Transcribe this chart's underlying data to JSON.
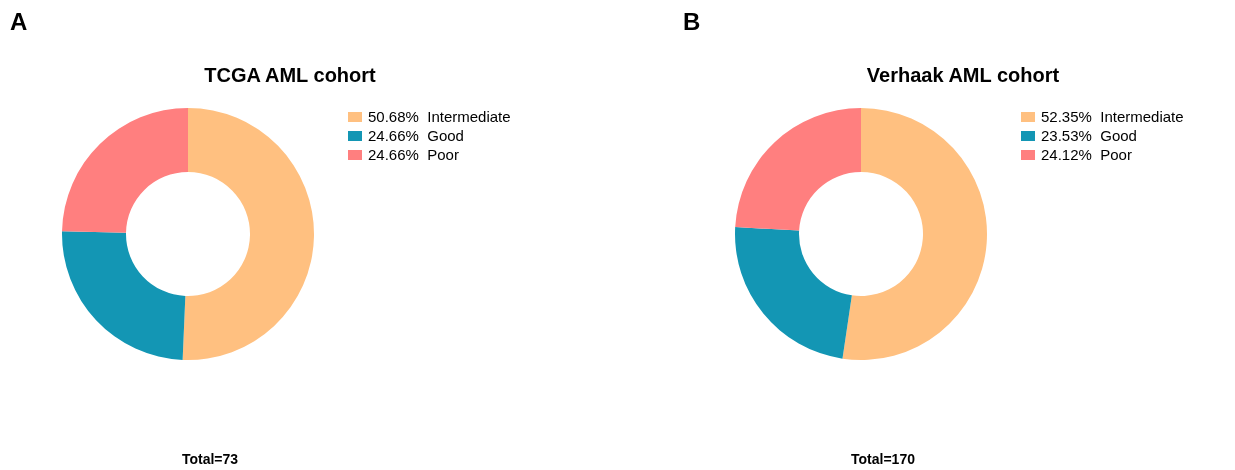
{
  "chart_data": [
    {
      "type": "donut",
      "title": "TCGA AML cohort",
      "categories": [
        "Intermediate",
        "Good",
        "Poor"
      ],
      "values": [
        50.68,
        24.66,
        24.66
      ],
      "value_labels": [
        "50.68%",
        "24.66%",
        "24.66%"
      ],
      "colors": [
        "#ffc080",
        "#1396b4",
        "#ff7f7f"
      ],
      "legend": "right",
      "annotations": [
        "A",
        "Total=73"
      ]
    },
    {
      "type": "donut",
      "title": "Verhaak AML cohort",
      "categories": [
        "Intermediate",
        "Good",
        "Poor"
      ],
      "values": [
        52.35,
        23.53,
        24.12
      ],
      "value_labels": [
        "52.35%",
        "23.53%",
        "24.12%"
      ],
      "colors": [
        "#ffc080",
        "#1396b4",
        "#ff7f7f"
      ],
      "legend": "right",
      "annotations": [
        "B",
        "Total=170"
      ]
    }
  ]
}
